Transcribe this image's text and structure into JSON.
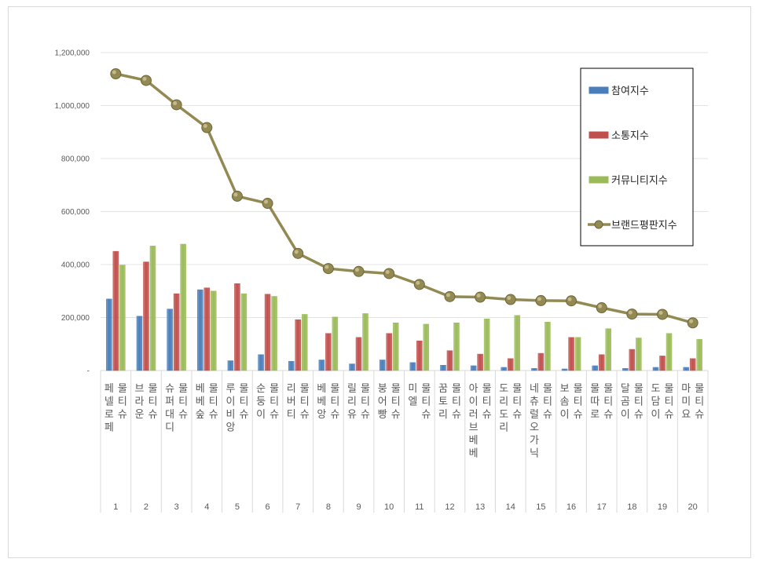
{
  "chart_data": {
    "type": "bar",
    "y_ticks": [
      "-",
      "200,000",
      "400,000",
      "600,000",
      "800,000",
      "1,000,000",
      "1,200,000"
    ],
    "ylim": [
      0,
      1200000
    ],
    "grid": true,
    "legend_position": "right",
    "categories": [
      {
        "index": "1",
        "name": "페넬로페 물티슈"
      },
      {
        "index": "2",
        "name": "브라운 물티슈"
      },
      {
        "index": "3",
        "name": "슈퍼대디 물티슈"
      },
      {
        "index": "4",
        "name": "베베숲 물티슈"
      },
      {
        "index": "5",
        "name": "루이비앙 물티슈"
      },
      {
        "index": "6",
        "name": "순둥이 물티슈"
      },
      {
        "index": "7",
        "name": "리버티 물티슈"
      },
      {
        "index": "8",
        "name": "베베앙 물티슈"
      },
      {
        "index": "9",
        "name": "릴리유 물티슈"
      },
      {
        "index": "10",
        "name": "붕어빵 물티슈"
      },
      {
        "index": "11",
        "name": "미엘 물티슈"
      },
      {
        "index": "12",
        "name": "꿈토리 물티슈"
      },
      {
        "index": "13",
        "name": "아이러브베베 물티슈"
      },
      {
        "index": "14",
        "name": "도리도리 물티슈"
      },
      {
        "index": "15",
        "name": "네츄럴오가닉 물티슈"
      },
      {
        "index": "16",
        "name": "보솜이 물티슈"
      },
      {
        "index": "17",
        "name": "물따로 물티슈"
      },
      {
        "index": "18",
        "name": "달곰이 물티슈"
      },
      {
        "index": "19",
        "name": "도담이 물티슈"
      },
      {
        "index": "20",
        "name": "마미요 물티슈"
      }
    ],
    "series": [
      {
        "name": "참여지수",
        "type": "bar",
        "color": "#4a7ebb",
        "values": [
          270000,
          205000,
          232000,
          305000,
          37000,
          60000,
          35000,
          40000,
          25000,
          40000,
          30000,
          20000,
          18000,
          12000,
          8000,
          6000,
          18000,
          8000,
          12000,
          12000
        ]
      },
      {
        "name": "소통지수",
        "type": "bar",
        "color": "#c0504d",
        "values": [
          450000,
          410000,
          290000,
          312000,
          328000,
          288000,
          192000,
          140000,
          125000,
          140000,
          112000,
          75000,
          62000,
          45000,
          65000,
          125000,
          60000,
          80000,
          55000,
          45000
        ]
      },
      {
        "name": "커뮤니티지수",
        "type": "bar",
        "color": "#9bbb59",
        "values": [
          398000,
          470000,
          477000,
          300000,
          290000,
          280000,
          212000,
          202000,
          215000,
          180000,
          175000,
          180000,
          195000,
          208000,
          183000,
          125000,
          158000,
          123000,
          140000,
          118000
        ]
      },
      {
        "name": "브랜드평판지수",
        "type": "line",
        "color": "#938953",
        "values": [
          1120000,
          1095000,
          1003000,
          917000,
          658000,
          631000,
          442000,
          385000,
          374000,
          366000,
          325000,
          279000,
          277000,
          268000,
          264000,
          263000,
          237000,
          213000,
          212000,
          180000
        ]
      }
    ]
  }
}
